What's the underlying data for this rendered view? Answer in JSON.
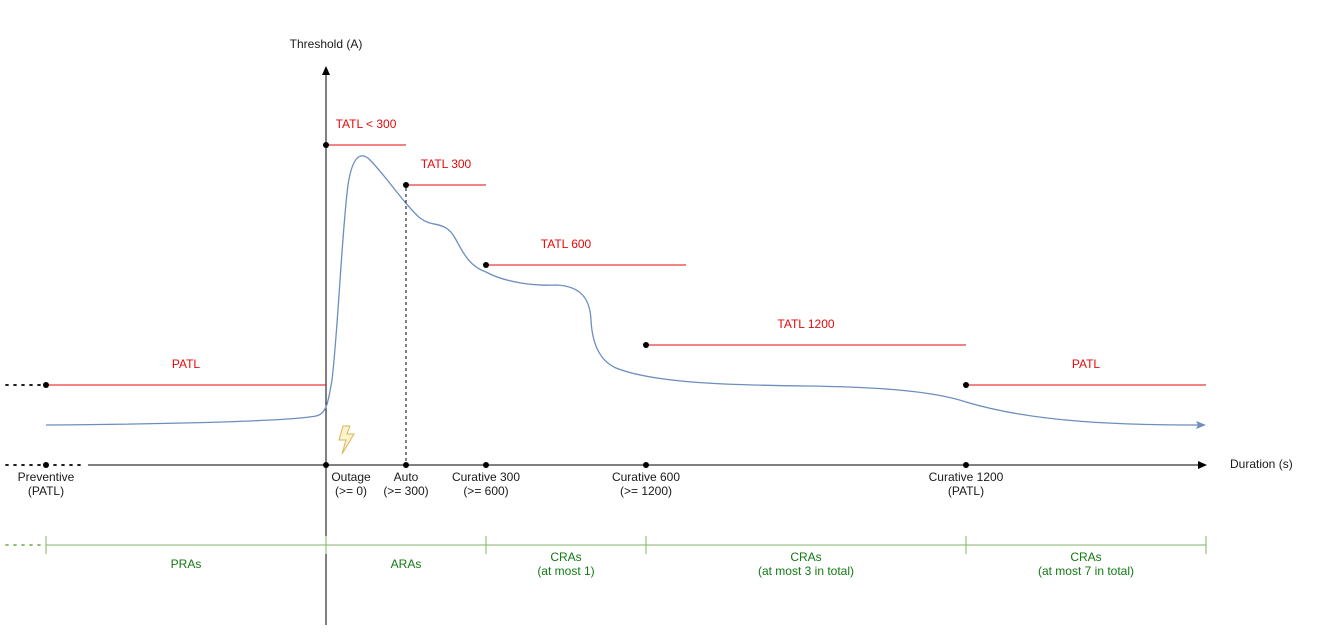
{
  "axes": {
    "y_label": "Threshold (A)",
    "x_label": "Duration (s)"
  },
  "thresholds": [
    {
      "label": "PATL"
    },
    {
      "label": "TATL < 300"
    },
    {
      "label": "TATL 300"
    },
    {
      "label": "TATL 600"
    },
    {
      "label": "TATL 1200"
    },
    {
      "label": "PATL"
    }
  ],
  "instants": [
    {
      "line1": "Preventive",
      "line2": "(PATL)"
    },
    {
      "line1": "Outage",
      "line2": "(>= 0)"
    },
    {
      "line1": "Auto",
      "line2": "(>= 300)"
    },
    {
      "line1": "Curative 300",
      "line2": "(>= 600)"
    },
    {
      "line1": "Curative 600",
      "line2": "(>= 1200)"
    },
    {
      "line1": "Curative 1200",
      "line2": "(PATL)"
    }
  ],
  "remedial_actions": [
    {
      "line1": "PRAs",
      "line2": ""
    },
    {
      "line1": "ARAs",
      "line2": ""
    },
    {
      "line1": "CRAs",
      "line2": "(at most 1)"
    },
    {
      "line1": "CRAs",
      "line2": "(at most 3 in total)"
    },
    {
      "line1": "CRAs",
      "line2": "(at most 7 in total)"
    }
  ],
  "icons": {
    "outage": "lightning-bolt-icon"
  },
  "colors": {
    "threshold": "#e6090a",
    "curve": "#6c8ebf",
    "remedial_actions": "#82b366",
    "remedial_text": "#127a12",
    "axis": "#000000",
    "bolt_fill": "#fff2cc",
    "bolt_stroke": "#d6b656"
  }
}
